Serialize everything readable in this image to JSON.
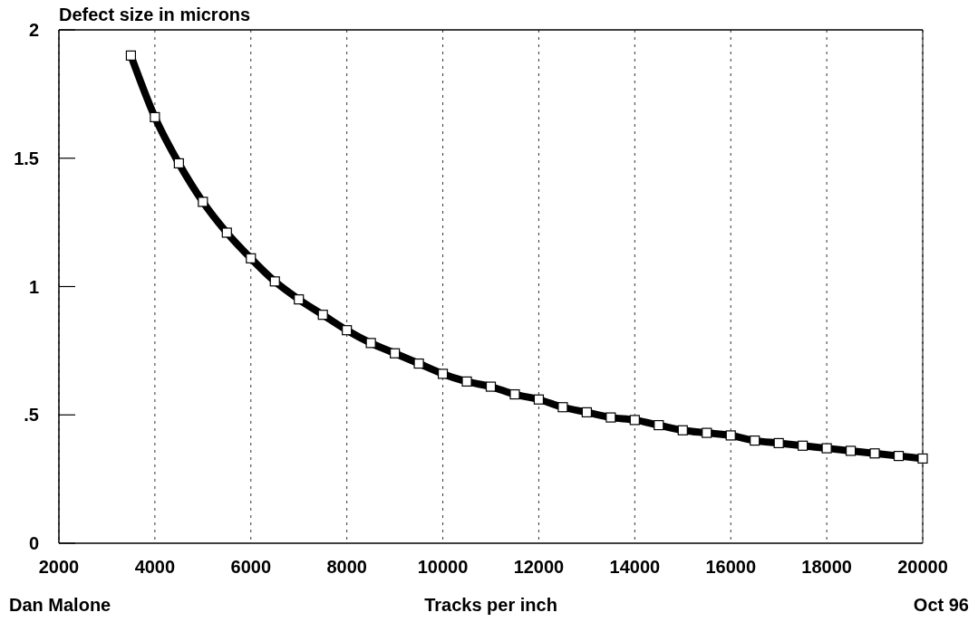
{
  "chart_data": {
    "type": "line",
    "ylabel": "Defect size in microns",
    "xlabel": "Tracks per inch",
    "annotations": [
      "Dan Malone",
      "Oct 96"
    ],
    "x": [
      3500,
      4000,
      4500,
      5000,
      5500,
      6000,
      6500,
      7000,
      7500,
      8000,
      8500,
      9000,
      9500,
      10000,
      10500,
      11000,
      11500,
      12000,
      12500,
      13000,
      13500,
      14000,
      14500,
      15000,
      15500,
      16000,
      16500,
      17000,
      17500,
      18000,
      18500,
      19000,
      19500,
      20000
    ],
    "series": [
      {
        "color": "#000000",
        "values": [
          1.9,
          1.66,
          1.48,
          1.33,
          1.21,
          1.11,
          1.02,
          0.95,
          0.89,
          0.83,
          0.78,
          0.74,
          0.7,
          0.66,
          0.63,
          0.61,
          0.58,
          0.56,
          0.53,
          0.51,
          0.49,
          0.48,
          0.46,
          0.44,
          0.43,
          0.42,
          0.4,
          0.39,
          0.38,
          0.37,
          0.36,
          0.35,
          0.34,
          0.33
        ]
      }
    ],
    "xlim": [
      2000,
      20000
    ],
    "xticks": [
      2000,
      4000,
      6000,
      8000,
      10000,
      12000,
      14000,
      16000,
      18000,
      20000
    ],
    "ylim": [
      0,
      2
    ],
    "yticks": [
      0,
      {
        "value": 0.5,
        "label": ".5"
      },
      1,
      1.5,
      2
    ],
    "grid": "x",
    "marker": "square",
    "line_style": "solid"
  }
}
